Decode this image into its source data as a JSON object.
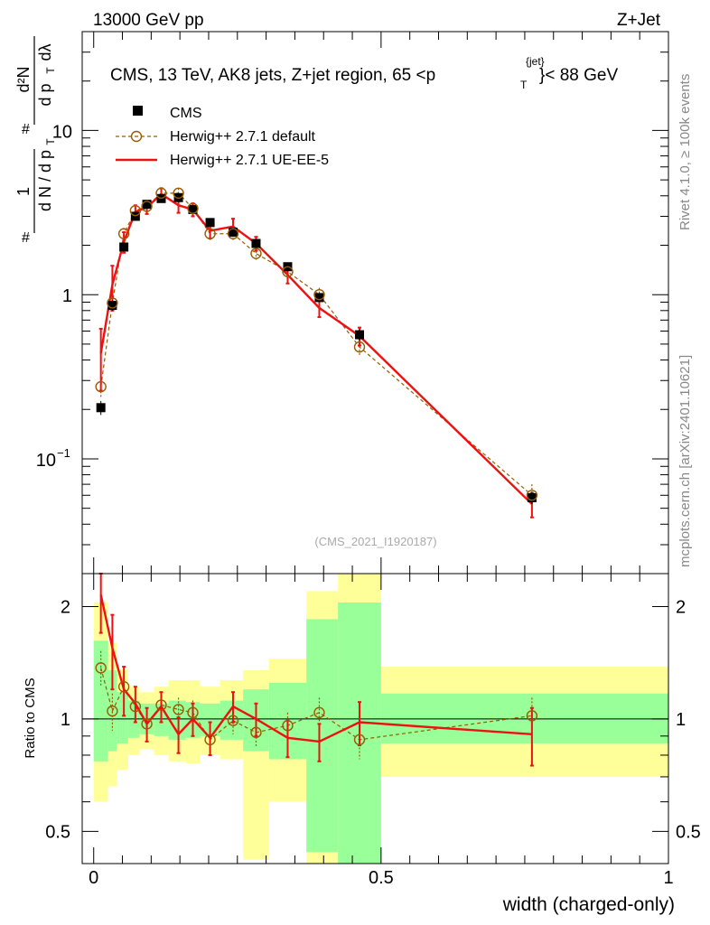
{
  "header": {
    "left": "13000 GeV pp",
    "right": "Z+Jet"
  },
  "side": {
    "rivet": "Rivet 4.1.0, ≥ 100k events",
    "mcplots": "mcplots.cern.ch [arXiv:2401.10621]"
  },
  "analysis_id": "(CMS_2021_I1920187)",
  "colors": {
    "data": "#000000",
    "default": "#9a5a00",
    "ueee5": "#ee1111",
    "band_inner": "#99ff99",
    "band_outer": "#ffff99"
  },
  "chart_data": [
    {
      "type": "scatter",
      "title": "CMS, 13 TeV, AK8 jets, Z+jet region, 65 <p_T^{jet}< 88 GeV",
      "title_parts": {
        "prefix": "CMS, 13 TeV, AK8 jets, Z+jet region, 65 <p",
        "sup": "{jet}",
        "sub": "T",
        "suffix": "}< 88 GeV"
      },
      "ylabel_parts": {
        "num": "1",
        "den": "d N / d p",
        "sub": "T",
        "dn": "d²N",
        "dd": "d p",
        "dsub": "T",
        "dl": "dλ",
        "hash": "#"
      },
      "yscale": "log",
      "ylim": [
        0.02,
        40
      ],
      "xlim": [
        -0.02,
        1.0
      ],
      "yticks": [
        {
          "v": 10,
          "main": "10",
          "exp": ""
        },
        {
          "v": 1,
          "main": "1",
          "exp": ""
        },
        {
          "v": 0.1,
          "main": "10",
          "exp": "−1"
        }
      ],
      "legend": [
        "CMS",
        "Herwig++ 2.7.1 default",
        "Herwig++ 2.7.1 UE-EE-5"
      ],
      "series": [
        {
          "name": "CMS",
          "x": [
            0.0125,
            0.0325,
            0.0525,
            0.0725,
            0.0925,
            0.1175,
            0.1475,
            0.1725,
            0.2025,
            0.2425,
            0.2825,
            0.3375,
            0.3925,
            0.4625,
            0.7625
          ],
          "y": [
            0.205,
            0.86,
            1.95,
            3.0,
            3.55,
            3.85,
            3.9,
            3.3,
            2.75,
            2.4,
            2.05,
            1.48,
            0.96,
            0.57,
            0.058
          ],
          "err": [
            0.02,
            0.06,
            0.1,
            0.12,
            0.12,
            0.12,
            0.12,
            0.12,
            0.1,
            0.1,
            0.1,
            0.08,
            0.06,
            0.04,
            0.005
          ]
        },
        {
          "name": "Herwig++ 2.7.1 default",
          "x": [
            0.0125,
            0.0325,
            0.0525,
            0.0725,
            0.0925,
            0.1175,
            0.1475,
            0.1725,
            0.2025,
            0.2425,
            0.2825,
            0.3375,
            0.3925,
            0.4625,
            0.7625
          ],
          "y": [
            0.275,
            0.89,
            2.35,
            3.25,
            3.45,
            4.15,
            4.15,
            3.35,
            2.35,
            2.35,
            1.78,
            1.38,
            1.0,
            0.48,
            0.06
          ],
          "err": [
            0.04,
            0.1,
            0.2,
            0.25,
            0.25,
            0.3,
            0.3,
            0.25,
            0.2,
            0.2,
            0.15,
            0.12,
            0.1,
            0.06,
            0.01
          ]
        },
        {
          "name": "Herwig++ 2.7.1 UE-EE-5",
          "x": [
            0.0125,
            0.0325,
            0.0525,
            0.0725,
            0.0925,
            0.1175,
            0.1475,
            0.1725,
            0.2025,
            0.2425,
            0.2825,
            0.3375,
            0.3925,
            0.4625,
            0.7625
          ],
          "y": [
            0.44,
            1.15,
            2.1,
            3.2,
            3.4,
            4.1,
            3.5,
            3.3,
            2.45,
            2.6,
            2.05,
            1.32,
            0.83,
            0.56,
            0.053
          ],
          "err": [
            0.18,
            0.35,
            0.3,
            0.3,
            0.3,
            0.35,
            0.35,
            0.3,
            0.25,
            0.3,
            0.2,
            0.15,
            0.1,
            0.07,
            0.009
          ]
        }
      ]
    },
    {
      "type": "scatter",
      "ylabel": "Ratio to CMS",
      "xlabel": "width (charged-only)",
      "yscale": "log",
      "ylim": [
        0.41,
        2.45
      ],
      "xlim": [
        -0.02,
        1.0
      ],
      "xticks": [
        {
          "v": 0,
          "label": "0"
        },
        {
          "v": 0.5,
          "label": "0.5"
        },
        {
          "v": 1,
          "label": "1"
        }
      ],
      "yticks": [
        {
          "v": 2,
          "label": "2"
        },
        {
          "v": 1,
          "label": "1"
        },
        {
          "v": 0.5,
          "label": "0.5"
        }
      ],
      "bins": [
        {
          "lo": 0.0,
          "hi": 0.025,
          "in_lo": 0.77,
          "in_hi": 1.62,
          "out_lo": 0.6,
          "out_hi": 2.05
        },
        {
          "lo": 0.025,
          "hi": 0.04,
          "in_lo": 0.82,
          "in_hi": 1.35,
          "out_lo": 0.66,
          "out_hi": 1.6
        },
        {
          "lo": 0.04,
          "hi": 0.06,
          "in_lo": 0.86,
          "in_hi": 1.18,
          "out_lo": 0.73,
          "out_hi": 1.36
        },
        {
          "lo": 0.06,
          "hi": 0.08,
          "in_lo": 0.89,
          "in_hi": 1.12,
          "out_lo": 0.8,
          "out_hi": 1.22
        },
        {
          "lo": 0.08,
          "hi": 0.105,
          "in_lo": 0.91,
          "in_hi": 1.1,
          "out_lo": 0.83,
          "out_hi": 1.18
        },
        {
          "lo": 0.105,
          "hi": 0.13,
          "in_lo": 0.9,
          "in_hi": 1.1,
          "out_lo": 0.8,
          "out_hi": 1.22
        },
        {
          "lo": 0.13,
          "hi": 0.16,
          "in_lo": 0.88,
          "in_hi": 1.12,
          "out_lo": 0.77,
          "out_hi": 1.27
        },
        {
          "lo": 0.16,
          "hi": 0.185,
          "in_lo": 0.89,
          "in_hi": 1.11,
          "out_lo": 0.76,
          "out_hi": 1.27
        },
        {
          "lo": 0.185,
          "hi": 0.22,
          "in_lo": 0.9,
          "in_hi": 1.1,
          "out_lo": 0.8,
          "out_hi": 1.22
        },
        {
          "lo": 0.22,
          "hi": 0.26,
          "in_lo": 0.88,
          "in_hi": 1.12,
          "out_lo": 0.78,
          "out_hi": 1.27
        },
        {
          "lo": 0.26,
          "hi": 0.305,
          "in_lo": 0.82,
          "in_hi": 1.2,
          "out_lo": 0.42,
          "out_hi": 1.35
        },
        {
          "lo": 0.305,
          "hi": 0.37,
          "in_lo": 0.78,
          "in_hi": 1.25,
          "out_lo": 0.6,
          "out_hi": 1.45
        },
        {
          "lo": 0.37,
          "hi": 0.425,
          "in_lo": 0.44,
          "in_hi": 1.85,
          "out_lo": 0.41,
          "out_hi": 2.2
        },
        {
          "lo": 0.425,
          "hi": 0.5,
          "in_lo": 0.41,
          "in_hi": 2.05,
          "out_lo": 0.41,
          "out_hi": 2.45
        },
        {
          "lo": 0.5,
          "hi": 1.0,
          "in_lo": 0.86,
          "in_hi": 1.17,
          "out_lo": 0.7,
          "out_hi": 1.38
        }
      ],
      "series": [
        {
          "name": "Herwig++ 2.7.1 default",
          "x": [
            0.0125,
            0.0325,
            0.0525,
            0.0725,
            0.0925,
            0.1175,
            0.1475,
            0.1725,
            0.2025,
            0.2425,
            0.2825,
            0.3375,
            0.3925,
            0.4625,
            0.7625
          ],
          "y": [
            1.37,
            1.05,
            1.22,
            1.08,
            0.97,
            1.09,
            1.06,
            1.04,
            0.88,
            0.99,
            0.92,
            0.96,
            1.04,
            0.88,
            1.02
          ],
          "err": [
            0.15,
            0.12,
            0.1,
            0.08,
            0.08,
            0.08,
            0.08,
            0.08,
            0.08,
            0.08,
            0.08,
            0.08,
            0.1,
            0.1,
            0.12
          ]
        },
        {
          "name": "Herwig++ 2.7.1 UE-EE-5",
          "x": [
            0.0125,
            0.0325,
            0.0525,
            0.0725,
            0.0925,
            0.1175,
            0.1475,
            0.1725,
            0.2025,
            0.2425,
            0.2825,
            0.3375,
            0.3925,
            0.4625,
            0.7625
          ],
          "y": [
            2.15,
            1.55,
            1.2,
            1.1,
            0.97,
            1.08,
            0.91,
            1.0,
            0.89,
            1.08,
            1.0,
            0.89,
            0.87,
            0.98,
            0.91
          ],
          "err": [
            0.45,
            0.35,
            0.18,
            0.12,
            0.1,
            0.1,
            0.1,
            0.1,
            0.09,
            0.1,
            0.1,
            0.1,
            0.1,
            0.13,
            0.16
          ]
        }
      ]
    }
  ]
}
